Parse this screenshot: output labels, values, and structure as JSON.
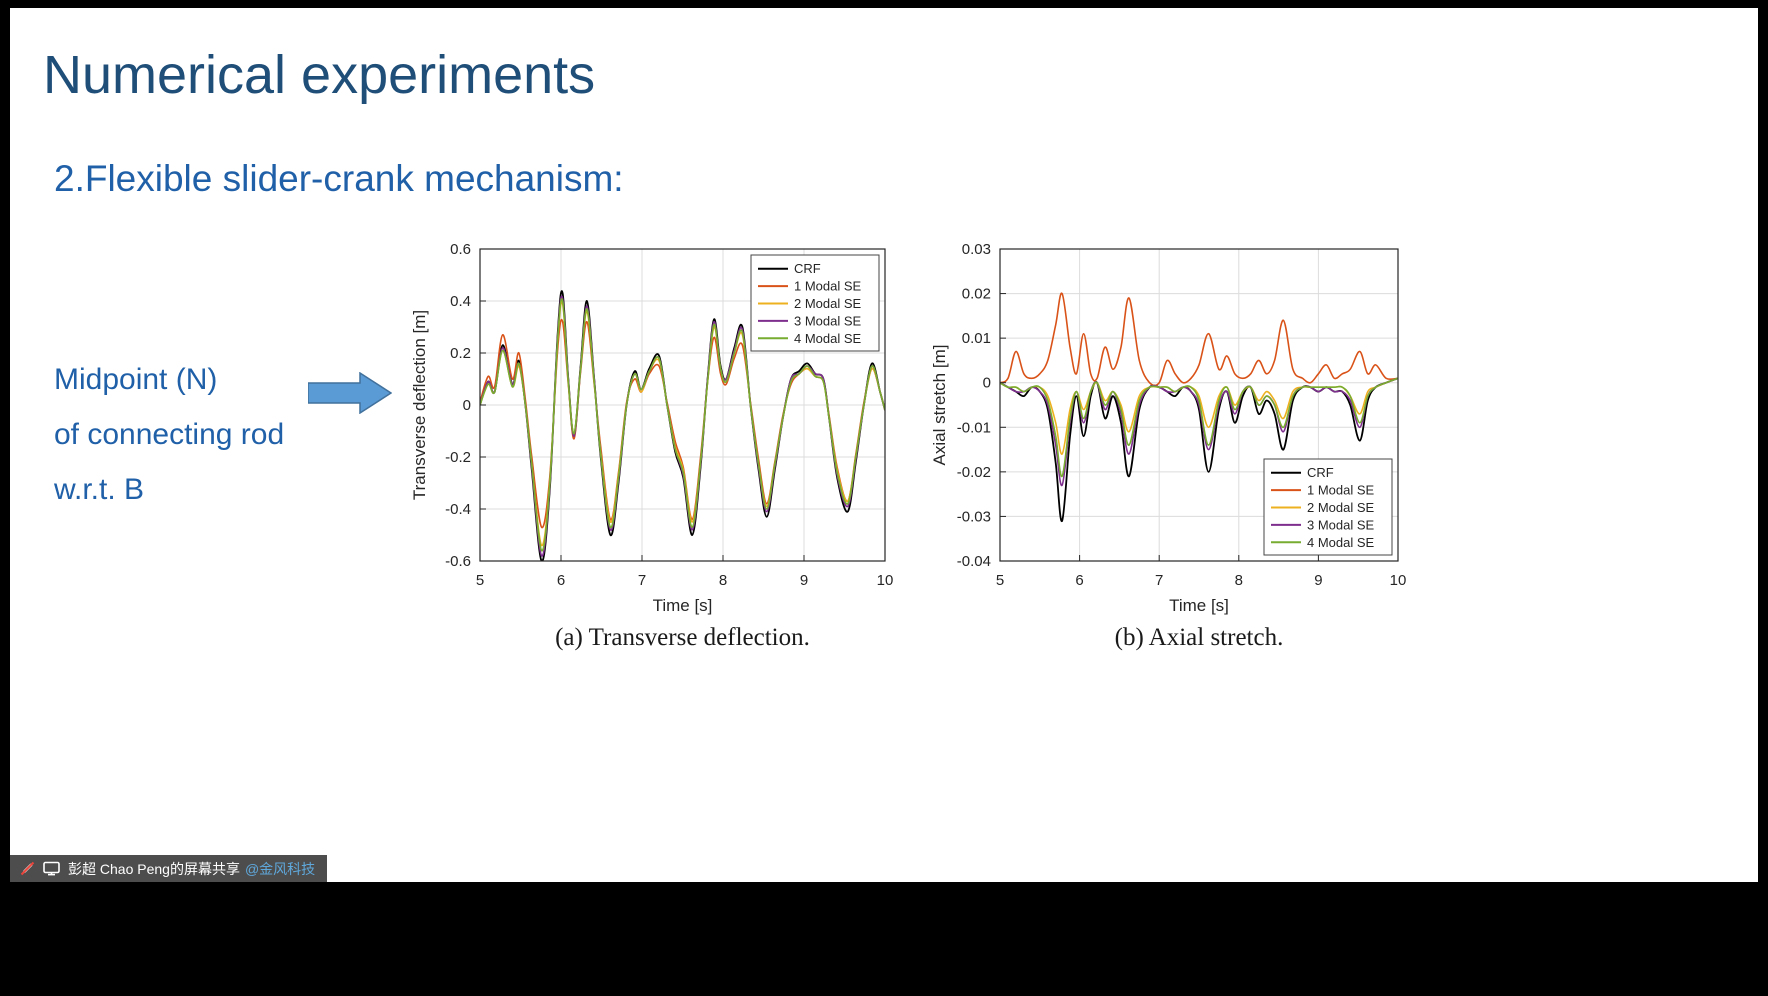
{
  "colors": {
    "frame_black": "#000000",
    "slide_white": "#FFFFFF",
    "title_blue": "#1F4E79",
    "body_blue": "#2060A8",
    "arrow_fill": "#5B9BD5",
    "arrow_stroke": "#41719C",
    "share_bar_bg": "#4D4D4D",
    "mention_blue": "#5FA8DC"
  },
  "slide": {
    "title": "Numerical experiments",
    "subtitle": "2.Flexible slider-crank mechanism:",
    "annotation_lines": [
      "Midpoint (N)",
      "of connecting rod",
      "w.r.t. B"
    ]
  },
  "share_bar": {
    "presenter_text": "彭超 Chao Peng的屏幕共享",
    "mention": "@金风科技",
    "icons": [
      "annotation-disabled-icon",
      "screen-icon"
    ]
  },
  "chart_data": [
    {
      "type": "line",
      "caption": "(a) Transverse deflection.",
      "xlabel": "Time [s]",
      "ylabel": "Transverse deflection [m]",
      "xlim": [
        5,
        10
      ],
      "ylim": [
        -0.6,
        0.6
      ],
      "xticks": [
        5,
        6,
        7,
        8,
        9,
        10
      ],
      "xtick_labels": [
        "5",
        "6",
        "7",
        "8",
        "9",
        "10"
      ],
      "yticks": [
        -0.6,
        -0.4,
        -0.2,
        0,
        0.2,
        0.4,
        0.6
      ],
      "ytick_labels": [
        "-0.6",
        "-0.4",
        "-0.2",
        "0",
        "0.2",
        "0.4",
        "0.6"
      ],
      "grid": true,
      "legend_position": "top-right",
      "x": [
        5.0,
        5.1,
        5.18,
        5.28,
        5.4,
        5.48,
        5.56,
        5.64,
        5.76,
        5.86,
        5.96,
        6.02,
        6.09,
        6.16,
        6.24,
        6.32,
        6.41,
        6.49,
        6.61,
        6.71,
        6.81,
        6.91,
        6.99,
        7.09,
        7.21,
        7.31,
        7.41,
        7.51,
        7.62,
        7.72,
        7.81,
        7.89,
        7.97,
        8.04,
        8.14,
        8.24,
        8.34,
        8.44,
        8.54,
        8.64,
        8.74,
        8.84,
        8.94,
        9.04,
        9.14,
        9.24,
        9.31,
        9.41,
        9.54,
        9.64,
        9.74,
        9.84,
        9.94,
        10.0
      ],
      "series": [
        {
          "name": "CRF",
          "color": "#000000",
          "y": [
            0.0,
            0.09,
            0.05,
            0.23,
            0.08,
            0.17,
            0.0,
            -0.25,
            -0.6,
            -0.33,
            0.28,
            0.43,
            0.1,
            -0.12,
            0.14,
            0.4,
            0.1,
            -0.2,
            -0.5,
            -0.3,
            0.0,
            0.13,
            0.06,
            0.14,
            0.19,
            0.0,
            -0.18,
            -0.28,
            -0.5,
            -0.25,
            0.1,
            0.33,
            0.15,
            0.1,
            0.22,
            0.3,
            0.0,
            -0.25,
            -0.43,
            -0.25,
            -0.05,
            0.1,
            0.13,
            0.16,
            0.12,
            0.1,
            -0.05,
            -0.28,
            -0.41,
            -0.22,
            0.0,
            0.16,
            0.05,
            -0.02
          ]
        },
        {
          "name": "1 Modal SE",
          "color": "#D95319",
          "y": [
            0.01,
            0.11,
            0.07,
            0.27,
            0.1,
            0.2,
            0.02,
            -0.2,
            -0.47,
            -0.28,
            0.22,
            0.32,
            0.08,
            -0.13,
            0.12,
            0.32,
            0.08,
            -0.16,
            -0.44,
            -0.26,
            0.01,
            0.1,
            0.05,
            0.12,
            0.15,
            0.01,
            -0.14,
            -0.24,
            -0.44,
            -0.21,
            0.09,
            0.26,
            0.12,
            0.08,
            0.18,
            0.23,
            0.01,
            -0.21,
            -0.38,
            -0.22,
            -0.04,
            0.08,
            0.12,
            0.14,
            0.11,
            0.09,
            -0.04,
            -0.24,
            -0.37,
            -0.19,
            0.01,
            0.14,
            0.05,
            -0.02
          ]
        },
        {
          "name": "2 Modal SE",
          "color": "#EDB120",
          "y": [
            0.0,
            0.08,
            0.05,
            0.21,
            0.07,
            0.15,
            0.0,
            -0.23,
            -0.54,
            -0.3,
            0.25,
            0.39,
            0.09,
            -0.11,
            0.13,
            0.36,
            0.09,
            -0.18,
            -0.45,
            -0.27,
            0.0,
            0.12,
            0.05,
            0.13,
            0.17,
            0.0,
            -0.16,
            -0.25,
            -0.45,
            -0.23,
            0.09,
            0.3,
            0.14,
            0.09,
            0.2,
            0.27,
            0.0,
            -0.23,
            -0.39,
            -0.23,
            -0.05,
            0.09,
            0.12,
            0.14,
            0.11,
            0.09,
            -0.05,
            -0.25,
            -0.37,
            -0.2,
            0.0,
            0.14,
            0.05,
            -0.02
          ]
        },
        {
          "name": "3 Modal SE",
          "color": "#7E2F8E",
          "y": [
            0.0,
            0.09,
            0.05,
            0.22,
            0.08,
            0.16,
            0.0,
            -0.24,
            -0.58,
            -0.32,
            0.27,
            0.41,
            0.1,
            -0.12,
            0.13,
            0.38,
            0.1,
            -0.19,
            -0.48,
            -0.29,
            0.0,
            0.12,
            0.06,
            0.13,
            0.18,
            0.0,
            -0.17,
            -0.27,
            -0.48,
            -0.24,
            0.1,
            0.32,
            0.14,
            0.1,
            0.21,
            0.29,
            0.0,
            -0.24,
            -0.41,
            -0.24,
            -0.05,
            0.1,
            0.12,
            0.15,
            0.12,
            0.1,
            -0.05,
            -0.27,
            -0.39,
            -0.21,
            0.0,
            0.15,
            0.05,
            -0.02
          ]
        },
        {
          "name": "4 Modal SE",
          "color": "#77AC30",
          "y": [
            0.0,
            0.08,
            0.05,
            0.21,
            0.07,
            0.16,
            0.0,
            -0.23,
            -0.56,
            -0.31,
            0.26,
            0.4,
            0.09,
            -0.11,
            0.13,
            0.37,
            0.09,
            -0.19,
            -0.47,
            -0.28,
            0.0,
            0.12,
            0.06,
            0.13,
            0.18,
            0.0,
            -0.17,
            -0.26,
            -0.47,
            -0.23,
            0.09,
            0.31,
            0.14,
            0.09,
            0.2,
            0.28,
            0.0,
            -0.23,
            -0.4,
            -0.23,
            -0.05,
            0.09,
            0.12,
            0.15,
            0.11,
            0.09,
            -0.05,
            -0.26,
            -0.38,
            -0.2,
            0.0,
            0.15,
            0.05,
            -0.02
          ]
        }
      ]
    },
    {
      "type": "line",
      "caption": "(b) Axial stretch.",
      "xlabel": "Time [s]",
      "ylabel": "Axial stretch [m]",
      "xlim": [
        5,
        10
      ],
      "ylim": [
        -0.04,
        0.03
      ],
      "xticks": [
        5,
        6,
        7,
        8,
        9,
        10
      ],
      "xtick_labels": [
        "5",
        "6",
        "7",
        "8",
        "9",
        "10"
      ],
      "yticks": [
        -0.04,
        -0.03,
        -0.02,
        -0.01,
        0,
        0.01,
        0.02,
        0.03
      ],
      "ytick_labels": [
        "-0.04",
        "-0.03",
        "-0.02",
        "-0.01",
        "0",
        "0.01",
        "0.02",
        "0.03"
      ],
      "grid": true,
      "legend_position": "bottom-right",
      "x": [
        5.0,
        5.1,
        5.2,
        5.3,
        5.4,
        5.5,
        5.6,
        5.7,
        5.78,
        5.88,
        5.96,
        6.05,
        6.14,
        6.22,
        6.32,
        6.42,
        6.52,
        6.62,
        6.75,
        6.88,
        7.0,
        7.1,
        7.2,
        7.3,
        7.4,
        7.5,
        7.62,
        7.75,
        7.85,
        7.95,
        8.05,
        8.15,
        8.25,
        8.35,
        8.45,
        8.56,
        8.68,
        8.8,
        8.9,
        9.0,
        9.1,
        9.2,
        9.3,
        9.4,
        9.52,
        9.62,
        9.72,
        9.85,
        10.0
      ],
      "series": [
        {
          "name": "CRF",
          "color": "#000000",
          "y": [
            0.0,
            -0.001,
            -0.002,
            -0.003,
            -0.001,
            -0.002,
            -0.006,
            -0.018,
            -0.031,
            -0.012,
            -0.003,
            -0.012,
            -0.003,
            0.0,
            -0.008,
            -0.003,
            -0.009,
            -0.021,
            -0.006,
            -0.001,
            -0.001,
            -0.002,
            -0.003,
            -0.001,
            -0.002,
            -0.006,
            -0.02,
            -0.006,
            -0.002,
            -0.009,
            -0.003,
            -0.001,
            -0.007,
            -0.004,
            -0.007,
            -0.015,
            -0.004,
            -0.001,
            -0.001,
            -0.002,
            -0.001,
            -0.002,
            -0.002,
            -0.005,
            -0.013,
            -0.004,
            -0.001,
            0.0,
            0.001
          ]
        },
        {
          "name": "1 Modal SE",
          "color": "#D95319",
          "y": [
            0.0,
            0.001,
            0.007,
            0.002,
            0.001,
            0.002,
            0.005,
            0.013,
            0.02,
            0.008,
            0.002,
            0.011,
            0.002,
            0.001,
            0.008,
            0.003,
            0.008,
            0.019,
            0.005,
            0.0,
            0.0,
            0.005,
            0.002,
            0.0,
            0.001,
            0.004,
            0.011,
            0.003,
            0.006,
            0.002,
            0.001,
            0.002,
            0.005,
            0.002,
            0.005,
            0.014,
            0.003,
            0.001,
            0.0,
            0.002,
            0.004,
            0.001,
            0.002,
            0.003,
            0.007,
            0.002,
            0.004,
            0.001,
            0.001
          ]
        },
        {
          "name": "2 Modal SE",
          "color": "#EDB120",
          "y": [
            0.0,
            -0.001,
            -0.001,
            -0.002,
            -0.001,
            -0.001,
            -0.003,
            -0.009,
            -0.016,
            -0.006,
            -0.002,
            -0.006,
            -0.002,
            0.0,
            -0.004,
            -0.002,
            -0.005,
            -0.011,
            -0.003,
            -0.001,
            -0.001,
            -0.001,
            -0.002,
            -0.001,
            -0.001,
            -0.003,
            -0.01,
            -0.003,
            -0.001,
            -0.005,
            -0.002,
            -0.001,
            -0.004,
            -0.002,
            -0.004,
            -0.008,
            -0.002,
            -0.001,
            -0.001,
            -0.001,
            -0.001,
            -0.001,
            -0.001,
            -0.003,
            -0.007,
            -0.002,
            -0.001,
            0.0,
            0.001
          ]
        },
        {
          "name": "3 Modal SE",
          "color": "#7E2F8E",
          "y": [
            0.0,
            -0.001,
            -0.002,
            -0.002,
            -0.001,
            -0.002,
            -0.005,
            -0.014,
            -0.023,
            -0.009,
            -0.002,
            -0.009,
            -0.002,
            0.0,
            -0.006,
            -0.002,
            -0.007,
            -0.016,
            -0.005,
            -0.001,
            -0.001,
            -0.002,
            -0.002,
            -0.001,
            -0.002,
            -0.005,
            -0.015,
            -0.005,
            -0.002,
            -0.007,
            -0.002,
            -0.001,
            -0.005,
            -0.003,
            -0.005,
            -0.011,
            -0.003,
            -0.001,
            -0.001,
            -0.002,
            -0.001,
            -0.002,
            -0.002,
            -0.004,
            -0.01,
            -0.003,
            -0.001,
            0.0,
            0.001
          ]
        },
        {
          "name": "4 Modal SE",
          "color": "#77AC30",
          "y": [
            0.0,
            -0.001,
            -0.001,
            -0.002,
            -0.001,
            -0.001,
            -0.004,
            -0.012,
            -0.021,
            -0.008,
            -0.002,
            -0.008,
            -0.002,
            0.0,
            -0.005,
            -0.002,
            -0.006,
            -0.014,
            -0.004,
            -0.001,
            -0.001,
            -0.001,
            -0.002,
            -0.001,
            -0.001,
            -0.004,
            -0.014,
            -0.004,
            -0.001,
            -0.006,
            -0.002,
            -0.001,
            -0.005,
            -0.003,
            -0.005,
            -0.01,
            -0.003,
            -0.001,
            -0.001,
            -0.001,
            -0.001,
            -0.001,
            -0.001,
            -0.003,
            -0.009,
            -0.003,
            -0.001,
            0.0,
            0.001
          ]
        }
      ]
    }
  ]
}
